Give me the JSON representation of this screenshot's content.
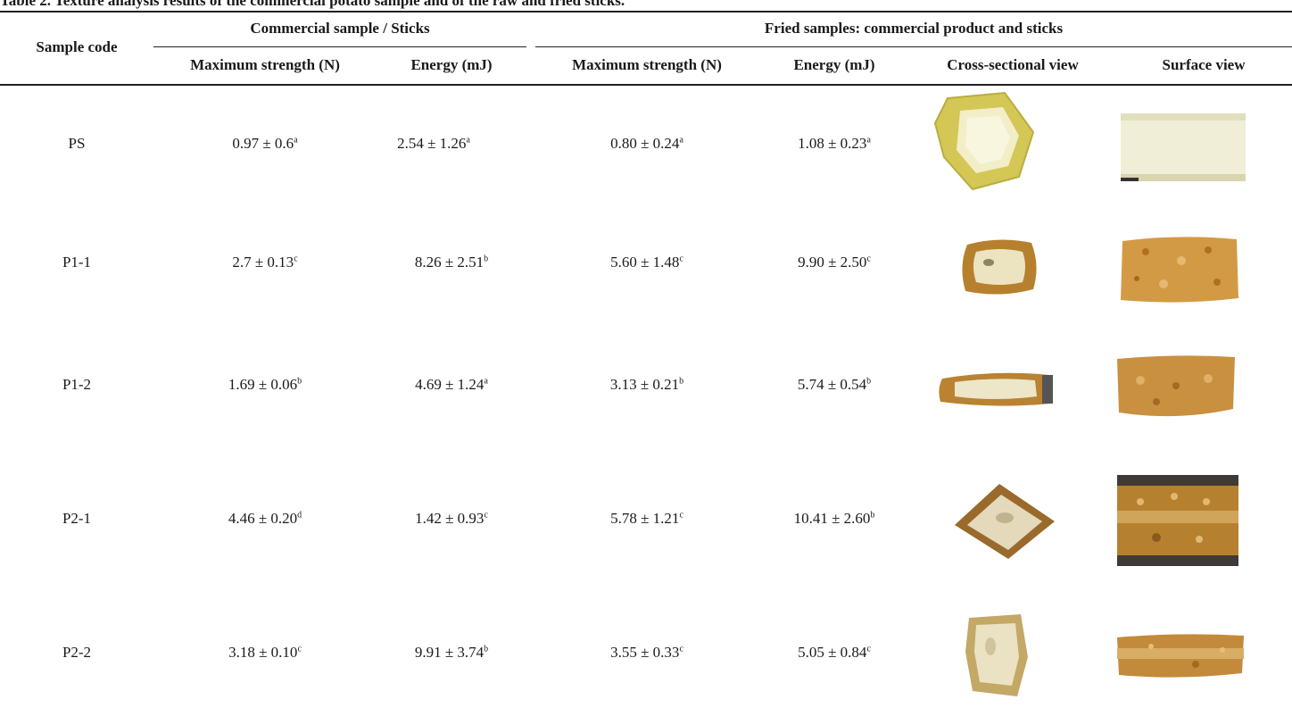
{
  "caption": "Table 2. Texture analysis results of the commercial potato sample and of the raw and fried sticks.",
  "headers": {
    "sample_code": "Sample code",
    "group_raw": "Commercial sample / Sticks",
    "group_fried": "Fried samples: commercial product and sticks",
    "raw_strength": "Maximum strength (N)",
    "raw_energy": "Energy (mJ)",
    "fried_strength": "Maximum strength (N)",
    "fried_energy": "Energy (mJ)",
    "cross_view": "Cross-sectional view",
    "surface_view": "Surface view"
  },
  "rows": [
    {
      "code": "PS",
      "raw_strength": {
        "v": "0.97 ± 0.6",
        "s": "a"
      },
      "raw_energy": {
        "v": "2.54 ± 1.26",
        "s": "a"
      },
      "fried_strength": {
        "v": "0.80 ± 0.24",
        "s": "a"
      },
      "fried_energy": {
        "v": "1.08 ± 0.23",
        "s": "a"
      },
      "cross_icon": "potato-cube-cross-section-photo",
      "surface_icon": "potato-stick-surface-photo"
    },
    {
      "code": "P1-1",
      "raw_strength": {
        "v": "2.7 ± 0.13",
        "s": "c"
      },
      "raw_energy": {
        "v": "8.26 ± 2.51",
        "s": "b"
      },
      "fried_strength": {
        "v": "5.60 ± 1.48",
        "s": "c"
      },
      "fried_energy": {
        "v": "9.90 ± 2.50",
        "s": "c"
      },
      "cross_icon": "fried-stick-cross-section-photo",
      "surface_icon": "fried-stick-surface-photo"
    },
    {
      "code": "P1-2",
      "raw_strength": {
        "v": "1.69 ± 0.06",
        "s": "b"
      },
      "raw_energy": {
        "v": "4.69 ± 1.24",
        "s": "a"
      },
      "fried_strength": {
        "v": "3.13 ± 0.21",
        "s": "b"
      },
      "fried_energy": {
        "v": "5.74 ± 0.54",
        "s": "b"
      },
      "cross_icon": "fried-stick-cross-section-photo",
      "surface_icon": "fried-stick-surface-photo"
    },
    {
      "code": "P2-1",
      "raw_strength": {
        "v": "4.46 ± 0.20",
        "s": "d"
      },
      "raw_energy": {
        "v": "1.42 ± 0.93",
        "s": "c"
      },
      "fried_strength": {
        "v": "5.78 ± 1.21",
        "s": "c"
      },
      "fried_energy": {
        "v": "10.41 ± 2.60",
        "s": "b"
      },
      "cross_icon": "fried-stick-cross-section-photo",
      "surface_icon": "fried-stick-surface-photo"
    },
    {
      "code": "P2-2",
      "raw_strength": {
        "v": "3.18 ± 0.10",
        "s": "c"
      },
      "raw_energy": {
        "v": "9.91 ± 3.74",
        "s": "b"
      },
      "fried_strength": {
        "v": "3.55 ± 0.33",
        "s": "c"
      },
      "fried_energy": {
        "v": "5.05 ± 0.84",
        "s": "c"
      },
      "cross_icon": "fried-stick-cross-section-photo",
      "surface_icon": "fried-stick-surface-photo"
    }
  ],
  "colors": {
    "raw_potato": "#f1efc4",
    "raw_potato_edge": "#d8cf6a",
    "fried_crust": "#c7892f",
    "fried_crust_dark": "#8a5a1c",
    "fried_inner": "#eee6c8"
  }
}
